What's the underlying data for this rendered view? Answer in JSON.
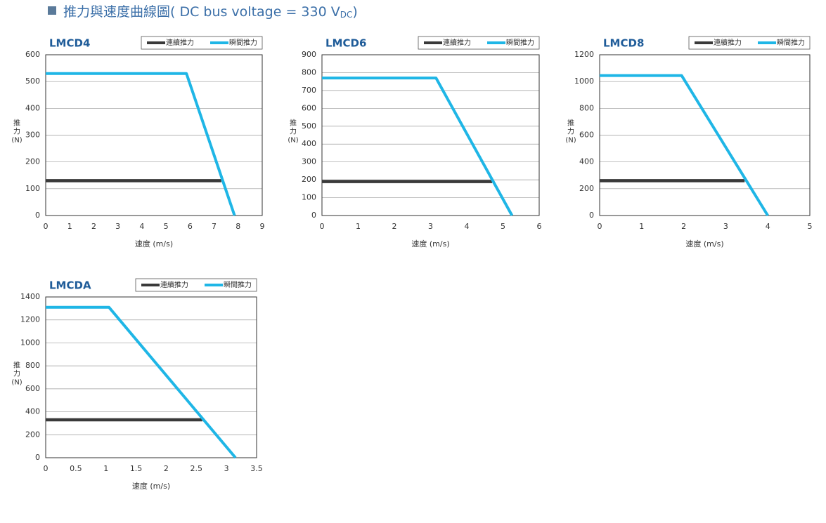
{
  "header": {
    "text": "推力與速度曲線圖( DC bus voltage = 330 V",
    "subscript": "DC",
    "close": ")"
  },
  "chart_data": [
    {
      "type": "line",
      "title": "LMCD4",
      "xlabel": "速度 (m/s)",
      "ylabel": [
        "推",
        "力",
        "(N)"
      ],
      "xlim": [
        0,
        9
      ],
      "xticks": [
        0,
        1,
        2,
        3,
        4,
        5,
        6,
        7,
        8,
        9
      ],
      "ylim": [
        0,
        600
      ],
      "yticks": [
        0,
        100,
        200,
        300,
        400,
        500,
        600
      ],
      "grid": true,
      "legend": "top-right",
      "series": [
        {
          "name": "連續推力",
          "color": "#3a3a3a",
          "x": [
            0,
            7.3
          ],
          "values": [
            130,
            130
          ]
        },
        {
          "name": "瞬間推力",
          "color": "#1fb6e6",
          "x": [
            0,
            5.85,
            7.85
          ],
          "values": [
            530,
            530,
            0
          ]
        }
      ]
    },
    {
      "type": "line",
      "title": "LMCD6",
      "xlabel": "速度 (m/s)",
      "ylabel": [
        "推",
        "力",
        "(N)"
      ],
      "xlim": [
        0,
        6
      ],
      "xticks": [
        0,
        1,
        2,
        3,
        4,
        5,
        6
      ],
      "ylim": [
        0,
        900
      ],
      "yticks": [
        0,
        100,
        200,
        300,
        400,
        500,
        600,
        700,
        800,
        900
      ],
      "grid": true,
      "legend": "top-right",
      "series": [
        {
          "name": "連續推力",
          "color": "#3a3a3a",
          "x": [
            0,
            4.7
          ],
          "values": [
            190,
            190
          ]
        },
        {
          "name": "瞬間推力",
          "color": "#1fb6e6",
          "x": [
            0,
            3.15,
            5.25
          ],
          "values": [
            770,
            770,
            0
          ]
        }
      ]
    },
    {
      "type": "line",
      "title": "LMCD8",
      "xlabel": "速度 (m/s)",
      "ylabel": [
        "推",
        "力",
        "(N)"
      ],
      "xlim": [
        0,
        5
      ],
      "xticks": [
        0,
        1,
        2,
        3,
        4,
        5
      ],
      "ylim": [
        0,
        1200
      ],
      "yticks": [
        0,
        200,
        400,
        600,
        800,
        1000,
        1200
      ],
      "grid": true,
      "legend": "top-right",
      "series": [
        {
          "name": "連續推力",
          "color": "#3a3a3a",
          "x": [
            0,
            3.45
          ],
          "values": [
            260,
            260
          ]
        },
        {
          "name": "瞬間推力",
          "color": "#1fb6e6",
          "x": [
            0,
            1.95,
            4.0
          ],
          "values": [
            1045,
            1045,
            0
          ]
        }
      ]
    },
    {
      "type": "line",
      "title": "LMCDA",
      "xlabel": "速度 (m/s)",
      "ylabel": [
        "推",
        "力",
        "(N)"
      ],
      "xlim": [
        0,
        3.5
      ],
      "xticks": [
        0,
        0.5,
        1,
        1.5,
        2,
        2.5,
        3,
        3.5
      ],
      "ylim": [
        0,
        1400
      ],
      "yticks": [
        0,
        200,
        400,
        600,
        800,
        1000,
        1200,
        1400
      ],
      "grid": true,
      "legend": "top-right",
      "series": [
        {
          "name": "連續推力",
          "color": "#3a3a3a",
          "x": [
            0,
            2.6
          ],
          "values": [
            330,
            330
          ]
        },
        {
          "name": "瞬間推力",
          "color": "#1fb6e6",
          "x": [
            0,
            1.05,
            3.15
          ],
          "values": [
            1310,
            1310,
            0
          ]
        }
      ]
    }
  ]
}
